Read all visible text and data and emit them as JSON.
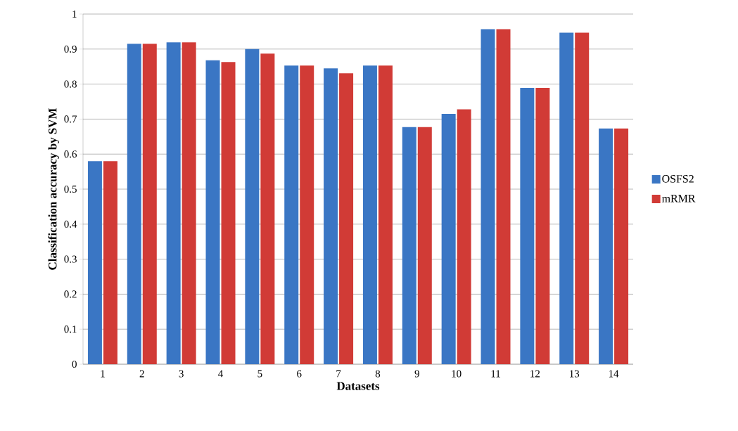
{
  "chart_data": {
    "type": "bar",
    "xlabel": "Datasets",
    "ylabel": "Classification accuracy by SVM",
    "categories": [
      "1",
      "2",
      "3",
      "4",
      "5",
      "6",
      "7",
      "8",
      "9",
      "10",
      "11",
      "12",
      "13",
      "14"
    ],
    "series": [
      {
        "name": "OSFS2",
        "color": "#3a76c4",
        "values": [
          0.58,
          0.915,
          0.919,
          0.868,
          0.9,
          0.853,
          0.845,
          0.853,
          0.677,
          0.715,
          0.957,
          0.789,
          0.947,
          0.673
        ]
      },
      {
        "name": "mRMR",
        "color": "#d13b36",
        "values": [
          0.58,
          0.915,
          0.919,
          0.863,
          0.887,
          0.853,
          0.831,
          0.853,
          0.677,
          0.728,
          0.957,
          0.789,
          0.947,
          0.673
        ]
      }
    ],
    "ylim": [
      0,
      1
    ],
    "yticks": [
      0,
      0.1,
      0.2,
      0.3,
      0.4,
      0.5,
      0.6,
      0.7,
      0.8,
      0.9,
      1
    ],
    "grid": "y",
    "legend": "right"
  }
}
